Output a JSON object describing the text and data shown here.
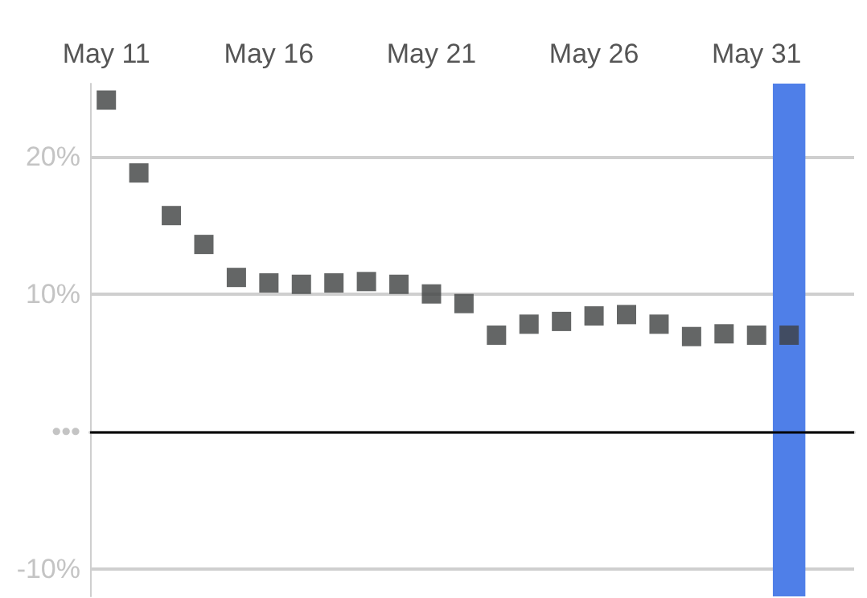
{
  "chart_data": {
    "type": "scatter",
    "x": [
      "--05-11",
      "--05-12",
      "--05-13",
      "--05-14",
      "--05-15",
      "--05-16",
      "--05-17",
      "--05-18",
      "--05-19",
      "--05-20",
      "--05-21",
      "--05-22",
      "--05-23",
      "--05-24",
      "--05-25",
      "--05-26",
      "--05-27",
      "--05-28",
      "--05-29",
      "--05-30",
      "--05-31",
      "--06-01"
    ],
    "series": [
      {
        "color": "#3d4040",
        "values": [
          24.1,
          18.8,
          15.7,
          13.6,
          11.2,
          10.8,
          10.7,
          10.8,
          10.9,
          10.7,
          10.0,
          9.3,
          7.0,
          7.8,
          8.0,
          8.4,
          8.5,
          7.8,
          6.9,
          7.1,
          7.0,
          7.0
        ]
      }
    ],
    "xlim": [
      "--05-10T12:00",
      "--06-03"
    ],
    "xticks": [
      {
        "value": "--05-11",
        "label": "May 11"
      },
      {
        "value": "--05-16",
        "label": "May 16"
      },
      {
        "value": "--05-21",
        "label": "May 21"
      },
      {
        "value": "--05-26",
        "label": "May 26"
      },
      {
        "value": "--05-31",
        "label": "May 31"
      }
    ],
    "ylim": [
      -12,
      25.3
    ],
    "yticks": [
      {
        "value": -10,
        "label": "-10%"
      },
      {
        "value": 0,
        "label": "•••"
      },
      {
        "value": 10,
        "label": "10%"
      },
      {
        "value": 20,
        "label": "20%"
      }
    ],
    "grid": "y",
    "marker": "square",
    "ref_lines": [
      {
        "axis": "y",
        "value": 0,
        "color": "#000000"
      }
    ],
    "bands": [
      {
        "axis": "x",
        "from": "--05-31T12:00",
        "to": "--06-01T12:00",
        "color": "#4f7fe8"
      }
    ]
  }
}
